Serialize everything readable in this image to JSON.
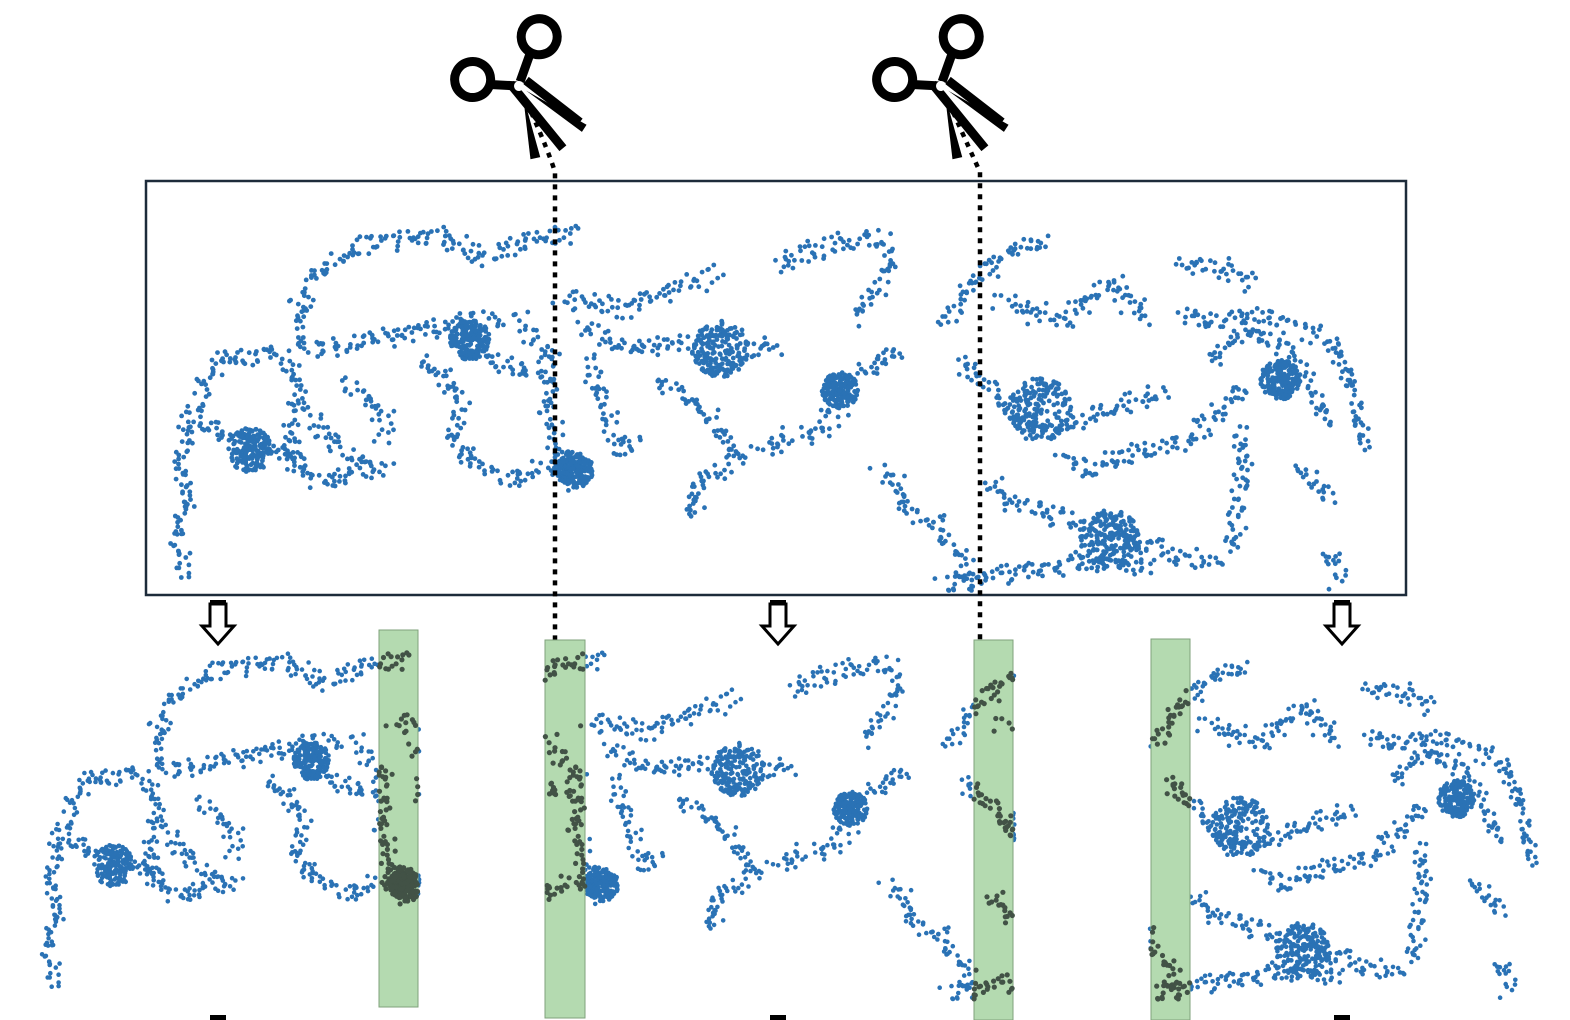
{
  "diagram": {
    "description_hidden": "",
    "colors": {
      "points": "#2a72b5",
      "overlap_fill": "#b4dab0",
      "overlap_stroke": "#7fa27b",
      "overlap_points": "#425246",
      "frame": "#1d2b3a",
      "cut_line": "#000000",
      "arrow_fill": "#ffffff",
      "arrow_stroke": "#000000"
    },
    "icons": {
      "cut": "scissors-icon",
      "split": "down-arrow-icon"
    },
    "segments": [
      {
        "name": "left-segment"
      },
      {
        "name": "middle-segment"
      },
      {
        "name": "right-segment"
      }
    ]
  }
}
